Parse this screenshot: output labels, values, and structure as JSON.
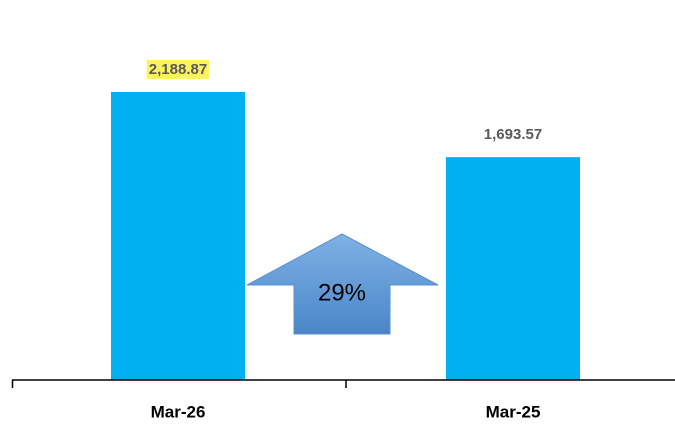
{
  "chart_data": {
    "type": "bar",
    "categories": [
      "Mar-26",
      "Mar-25"
    ],
    "values": [
      2188.87,
      1693.57
    ],
    "value_labels": [
      "2,188.87",
      "1,693.57"
    ],
    "color": "#00b0f0",
    "annotation": "29%"
  }
}
